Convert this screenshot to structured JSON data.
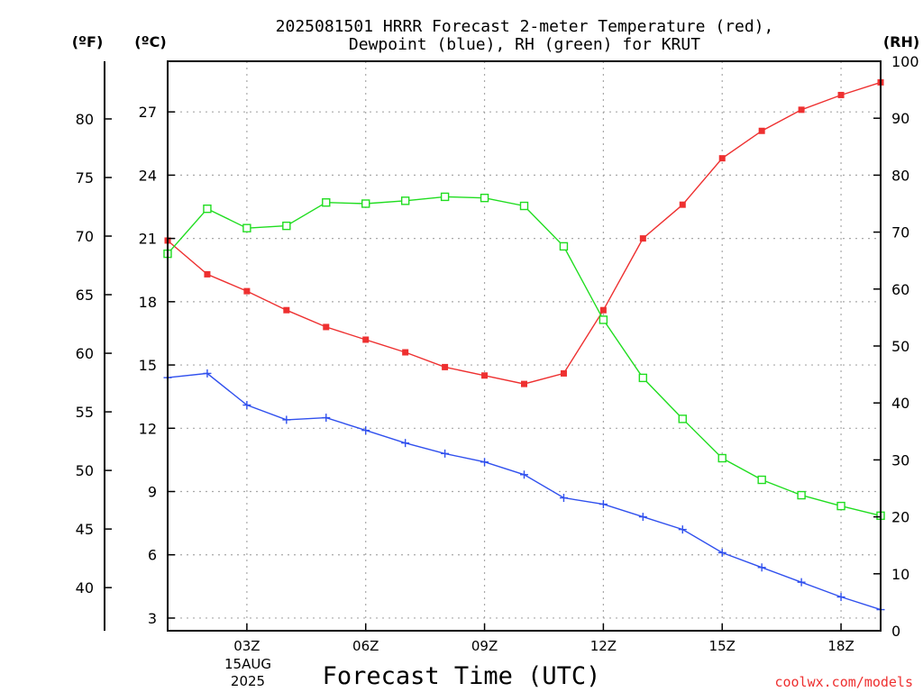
{
  "chart_data": {
    "type": "line",
    "title": "2025081501 HRRR Forecast 2-meter Temperature (red),",
    "title_line2": "Dewpoint (blue), RH (green) for KRUT",
    "xlabel": "Forecast Time (UTC)",
    "watermark": "coolwx.com/models",
    "axis_units": {
      "fahrenheit": "(ºF)",
      "celsius": "(ºC)",
      "rh": "(RH)"
    },
    "x_date_label": {
      "day": "15AUG",
      "year": "2025"
    },
    "xlim": [
      1,
      19
    ],
    "x_ticks": [
      {
        "x": 3,
        "label": "03Z"
      },
      {
        "x": 6,
        "label": "06Z"
      },
      {
        "x": 9,
        "label": "09Z"
      },
      {
        "x": 12,
        "label": "12Z"
      },
      {
        "x": 15,
        "label": "15Z"
      },
      {
        "x": 18,
        "label": "18Z"
      }
    ],
    "celsius_axis": {
      "ylim": [
        2.4,
        29.4
      ],
      "ticks": [
        3,
        6,
        9,
        12,
        15,
        18,
        21,
        24,
        27
      ]
    },
    "fahrenheit_axis": {
      "ticks": [
        40,
        45,
        50,
        55,
        60,
        65,
        70,
        75,
        80
      ]
    },
    "rh_axis": {
      "ylim": [
        0,
        100
      ],
      "ticks": [
        0,
        10,
        20,
        30,
        40,
        50,
        60,
        70,
        80,
        90,
        100
      ]
    },
    "grid": true,
    "series": [
      {
        "name": "Temperature",
        "color": "#ee3030",
        "marker": "filled-square",
        "axis": "celsius",
        "x": [
          1,
          2,
          3,
          4,
          5,
          6,
          7,
          8,
          9,
          10,
          11,
          12,
          13,
          14,
          15,
          16,
          17,
          18,
          19
        ],
        "values": [
          20.9,
          19.3,
          18.5,
          17.6,
          16.8,
          16.2,
          15.6,
          14.9,
          14.5,
          14.1,
          14.6,
          17.6,
          21.0,
          22.6,
          24.8,
          26.1,
          27.1,
          27.8,
          28.4
        ]
      },
      {
        "name": "Dewpoint",
        "color": "#3050ee",
        "marker": "plus",
        "axis": "celsius",
        "x": [
          1,
          2,
          3,
          4,
          5,
          6,
          7,
          8,
          9,
          10,
          11,
          12,
          13,
          14,
          15,
          16,
          17,
          18,
          19
        ],
        "values": [
          14.4,
          14.6,
          13.1,
          12.4,
          12.5,
          11.9,
          11.3,
          10.8,
          10.4,
          9.8,
          8.7,
          8.4,
          7.8,
          7.2,
          6.1,
          5.4,
          4.7,
          4.0,
          3.4
        ]
      },
      {
        "name": "RH",
        "color": "#20dd20",
        "marker": "open-square",
        "axis": "rh",
        "x": [
          1,
          2,
          3,
          4,
          5,
          6,
          7,
          8,
          9,
          10,
          11,
          12,
          13,
          14,
          15,
          16,
          17,
          18,
          19
        ],
        "values": [
          66.2,
          74.1,
          70.7,
          71.1,
          75.2,
          75.0,
          75.5,
          76.2,
          76.0,
          74.6,
          67.5,
          54.6,
          44.4,
          37.2,
          30.3,
          26.5,
          23.8,
          21.9,
          20.2
        ]
      }
    ]
  }
}
